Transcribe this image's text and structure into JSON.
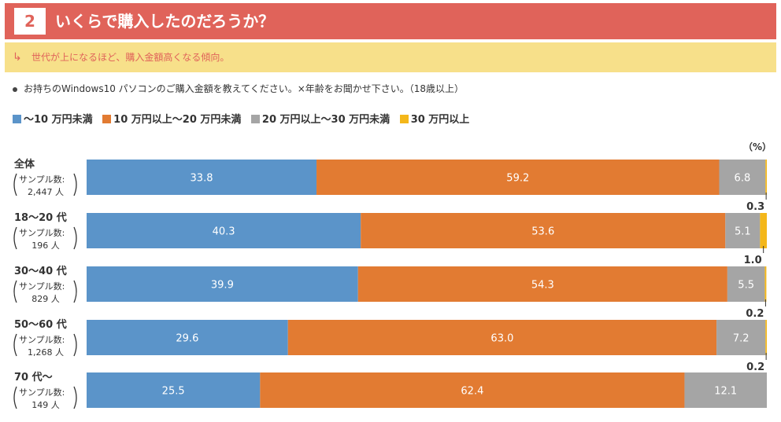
{
  "header": {
    "number": "2",
    "title": "いくらで購入したのだろうか？"
  },
  "subheader": {
    "arrow": "↳",
    "text": "世代が上になるほど、購入金額高くなる傾向。"
  },
  "question": "お持ちのWindows10 パソコンのご購入金額を教えてください。×年齢をお聞かせ下さい。（18歳以上）",
  "colors": {
    "header_bg": "#e0635a",
    "sub_bg": "#f7e08a",
    "blue": "#5b94c9",
    "orange": "#e27b32",
    "gray": "#a5a5a5",
    "yellow": "#f4b71a"
  },
  "chart_data": {
    "type": "bar",
    "orientation": "horizontal",
    "stacked": true,
    "unit_label": "（%）",
    "xlim": [
      0,
      100
    ],
    "series": [
      {
        "name": "〜10 万円未満",
        "color": "#5b94c9",
        "values": [
          33.8,
          40.3,
          39.9,
          29.6,
          25.5
        ]
      },
      {
        "name": "10 万円以上〜20 万円未満",
        "color": "#e27b32",
        "values": [
          59.2,
          53.6,
          54.3,
          63.0,
          62.4
        ]
      },
      {
        "name": "20 万円以上〜30 万円未満",
        "color": "#a5a5a5",
        "values": [
          6.8,
          5.1,
          5.5,
          7.2,
          12.1
        ]
      },
      {
        "name": "30 万円以上",
        "color": "#f4b71a",
        "values": [
          0.3,
          1.0,
          0.2,
          0.2,
          null
        ]
      }
    ],
    "categories": [
      {
        "label": "全体",
        "sample_prefix": "サンプル数:",
        "sample_count": "2,447 人"
      },
      {
        "label": "18〜20 代",
        "sample_prefix": "サンプル数:",
        "sample_count": "196 人"
      },
      {
        "label": "30〜40 代",
        "sample_prefix": "サンプル数:",
        "sample_count": "829 人"
      },
      {
        "label": "50〜60 代",
        "sample_prefix": "サンプル数:",
        "sample_count": "1,268 人"
      },
      {
        "label": "70 代〜",
        "sample_prefix": "サンプル数:",
        "sample_count": "149 人"
      }
    ],
    "data_labels": [
      [
        "33.8",
        "59.2",
        "6.8",
        "0.3"
      ],
      [
        "40.3",
        "53.6",
        "5.1",
        "1.0"
      ],
      [
        "39.9",
        "54.3",
        "5.5",
        "0.2"
      ],
      [
        "29.6",
        "63.0",
        "7.2",
        "0.2"
      ],
      [
        "25.5",
        "62.4",
        "12.1",
        ""
      ]
    ]
  }
}
